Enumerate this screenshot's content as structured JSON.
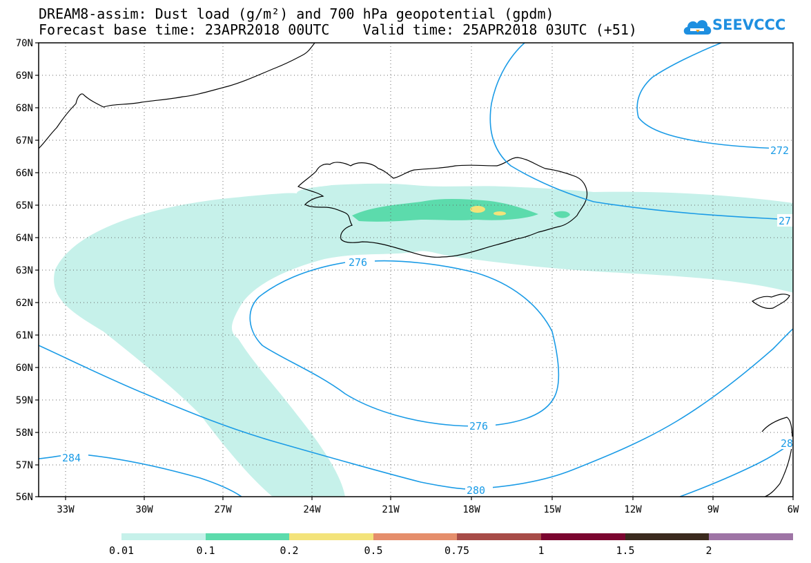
{
  "title": {
    "line1": "DREAM8-assim: Dust load (g/m²) and 700 hPa geopotential (gpdm)",
    "line2": "Forecast base time: 23APR2018 00UTC    Valid time: 25APR2018 03UTC (+51)"
  },
  "logo": {
    "text": "SEEVCCC",
    "icon": "cloud-icon",
    "color": "#1e8fe0"
  },
  "map": {
    "lat_labels": [
      "70N",
      "69N",
      "68N",
      "67N",
      "66N",
      "65N",
      "64N",
      "63N",
      "62N",
      "61N",
      "60N",
      "59N",
      "58N",
      "57N",
      "56N"
    ],
    "lon_labels": [
      "33W",
      "30W",
      "27W",
      "24W",
      "21W",
      "18W",
      "15W",
      "12W",
      "9W",
      "6W"
    ],
    "contour_labels": [
      "276",
      "276",
      "280",
      "284",
      "272",
      "27",
      "28"
    ],
    "contour_color": "#1a9be6",
    "coastline_color": "#000000"
  },
  "legend": {
    "labels": [
      "0.01",
      "0.1",
      "0.2",
      "0.5",
      "0.75",
      "1",
      "1.5",
      "2"
    ],
    "colors": [
      "#c6f1ea",
      "#5cdbac",
      "#f3e37a",
      "#e58e6b",
      "#a74c48",
      "#7b0530",
      "#3b2a1e",
      "#9e74a5"
    ]
  }
}
